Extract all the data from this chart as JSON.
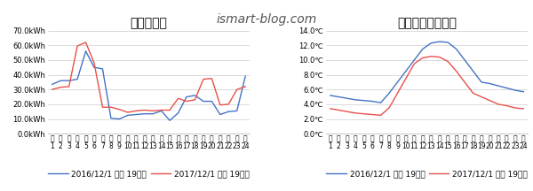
{
  "title_left": "電気使用量",
  "title_right": "時間帯別平均気温",
  "watermark": "ismart-blog.com",
  "elec_2016": [
    33.5,
    36.0,
    36.0,
    37.0,
    56.0,
    45.0,
    44.0,
    10.5,
    10.0,
    12.5,
    13.0,
    13.5,
    13.5,
    15.5,
    9.0,
    14.0,
    25.0,
    26.0,
    22.0,
    22.0,
    13.0,
    15.0,
    15.5,
    39.0
  ],
  "elec_2017": [
    30.0,
    31.5,
    32.0,
    59.5,
    62.0,
    48.0,
    18.0,
    18.0,
    16.5,
    14.5,
    15.5,
    16.0,
    15.5,
    16.0,
    16.0,
    24.0,
    22.0,
    23.0,
    37.0,
    37.5,
    19.5,
    20.0,
    30.0,
    32.0
  ],
  "temp_2016": [
    5.2,
    5.0,
    4.8,
    4.6,
    4.5,
    4.4,
    4.2,
    5.5,
    7.0,
    8.5,
    10.0,
    11.5,
    12.3,
    12.5,
    12.4,
    11.5,
    10.0,
    8.5,
    7.0,
    6.8,
    6.5,
    6.2,
    5.9,
    5.7
  ],
  "temp_2017": [
    3.4,
    3.2,
    3.0,
    2.8,
    2.7,
    2.6,
    2.5,
    3.5,
    5.5,
    7.5,
    9.5,
    10.3,
    10.5,
    10.4,
    9.8,
    8.5,
    7.0,
    5.5,
    5.0,
    4.5,
    4.0,
    3.8,
    3.5,
    3.4
  ],
  "color_2016": "#4472c4",
  "color_2017": "#e8504a",
  "legend_2016": "2016/12/1 から 19日間",
  "legend_2017": "2017/12/1 から 19日間",
  "elec_yticks": [
    0.0,
    10.0,
    20.0,
    30.0,
    40.0,
    50.0,
    60.0,
    70.0
  ],
  "elec_ylabels": [
    "0.0kWh",
    "10.0kWh",
    "20.0kWh",
    "30.0kWh",
    "40.0kWh",
    "50.0kWh",
    "60.0kWh",
    "70.0kWh"
  ],
  "temp_yticks": [
    0.0,
    2.0,
    4.0,
    6.0,
    8.0,
    10.0,
    12.0,
    14.0
  ],
  "temp_ylabels": [
    "0.0℃",
    "2.0℃",
    "4.0℃",
    "6.0℃",
    "8.0℃",
    "10.0℃",
    "12.0℃",
    "14.0℃"
  ],
  "bg_color": "#ffffff",
  "grid_color": "#cccccc",
  "title_fontsize": 10,
  "watermark_fontsize": 10,
  "tick_fontsize": 6,
  "legend_fontsize": 6.5,
  "x_numbers": [
    "1",
    "2",
    "3",
    "4",
    "5",
    "6",
    "7",
    "8",
    "9",
    "10",
    "11",
    "12",
    "13",
    "14",
    "15",
    "16",
    "17",
    "18",
    "19",
    "20",
    "21",
    "22",
    "23",
    "24"
  ]
}
